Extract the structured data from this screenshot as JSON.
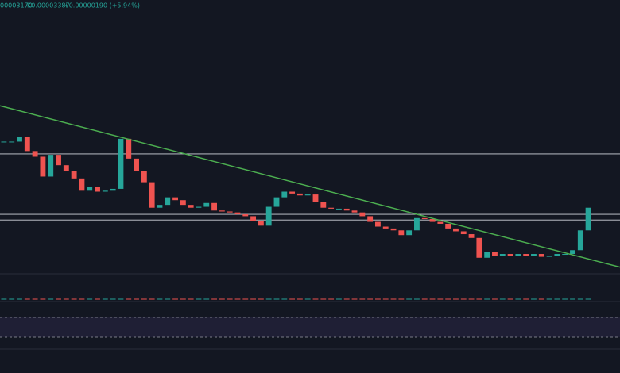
{
  "chart_data": {
    "type": "candlestick",
    "header": [
      "00003170",
      "K0.00003387",
      "+0.00000190 (+5.94%)"
    ],
    "values": [
      4.09e-05,
      4.09e-05,
      4.14e-05,
      3.99e-05,
      3.93e-05,
      3.72e-05,
      3.95e-05,
      3.84e-05,
      3.78e-05,
      3.7e-05,
      3.57e-05,
      3.61e-05,
      3.56e-05,
      3.57e-05,
      3.59e-05,
      4.12e-05,
      3.91e-05,
      3.78e-05,
      3.66e-05,
      3.39e-05,
      3.42e-05,
      3.5e-05,
      3.47e-05,
      3.42e-05,
      3.39e-05,
      3.4e-05,
      3.44e-05,
      3.36e-05,
      3.35e-05,
      3.34e-05,
      3.32e-05,
      3.3e-05,
      3.25e-05,
      3.2e-05,
      3.4e-05,
      3.5e-05,
      3.56e-05,
      3.54e-05,
      3.52e-05,
      3.53e-05,
      3.45e-05,
      3.39e-05,
      3.38e-05,
      3.38e-05,
      3.36e-05,
      3.34e-05,
      3.3e-05,
      3.24e-05,
      3.19e-05,
      3.17e-05,
      3.15e-05,
      3.1e-05,
      3.15e-05,
      3.28e-05,
      3.27e-05,
      3.24e-05,
      3.22e-05,
      3.17e-05,
      3.14e-05,
      3.11e-05,
      3.07e-05,
      2.86e-05,
      2.92e-05,
      2.88e-05,
      2.9e-05,
      2.88e-05,
      2.9e-05,
      2.88e-05,
      2.9e-05,
      2.87e-05,
      2.88e-05,
      2.9e-05,
      2.9e-05,
      2.94e-05,
      3.15e-05,
      3.39e-05
    ],
    "up_color": "#26a69a",
    "down_color": "#ef5350",
    "levels": [
      3.96e-05,
      3.61e-05,
      3.32e-05,
      3.26e-05
    ],
    "level_color": "#d1d4dc",
    "trendline": [
      4.47e-05,
      2.76e-05
    ],
    "trend_color": "#4caf50",
    "ylim": [
      2.69e-05,
      5.59e-05
    ]
  }
}
